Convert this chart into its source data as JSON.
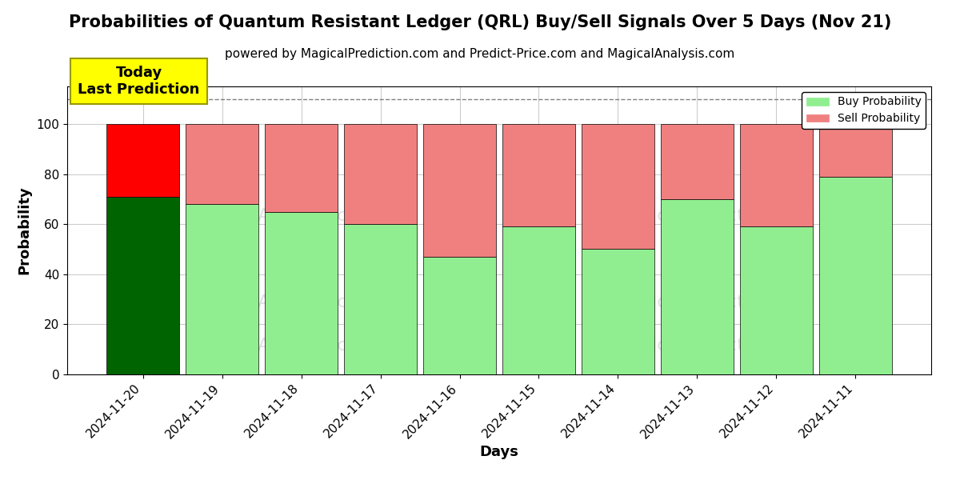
{
  "title": "Probabilities of Quantum Resistant Ledger (QRL) Buy/Sell Signals Over 5 Days (Nov 21)",
  "subtitle": "powered by MagicalPrediction.com and Predict-Price.com and MagicalAnalysis.com",
  "xlabel": "Days",
  "ylabel": "Probability",
  "categories": [
    "2024-11-20",
    "2024-11-19",
    "2024-11-18",
    "2024-11-17",
    "2024-11-16",
    "2024-11-15",
    "2024-11-14",
    "2024-11-13",
    "2024-11-12",
    "2024-11-11"
  ],
  "buy_values": [
    71,
    68,
    65,
    60,
    47,
    59,
    50,
    70,
    59,
    79
  ],
  "sell_values": [
    29,
    32,
    35,
    40,
    53,
    41,
    50,
    30,
    41,
    21
  ],
  "today_buy_color": "#006400",
  "today_sell_color": "#FF0000",
  "buy_color": "#90EE90",
  "sell_color": "#F08080",
  "today_annotation_bg": "#FFFF00",
  "today_annotation_text": "Today\nLast Prediction",
  "legend_buy_label": "Buy Probability",
  "legend_sell_label": "Sell Probability",
  "ylim": [
    0,
    115
  ],
  "yticks": [
    0,
    20,
    40,
    60,
    80,
    100
  ],
  "dashed_line_y": 110,
  "background_color": "#ffffff",
  "grid_color": "#cccccc",
  "title_fontsize": 15,
  "subtitle_fontsize": 11,
  "axis_label_fontsize": 13,
  "tick_fontsize": 11,
  "bar_width": 0.92
}
